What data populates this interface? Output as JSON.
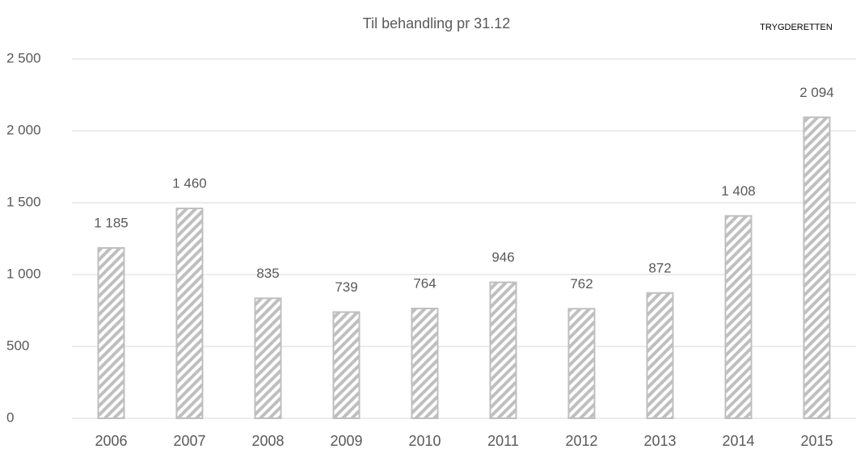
{
  "chart_data": {
    "type": "bar",
    "title": "Til behandling pr 31.12",
    "annotation": "TRYGDERETTEN",
    "categories": [
      "2006",
      "2007",
      "2008",
      "2009",
      "2010",
      "2011",
      "2012",
      "2013",
      "2014",
      "2015"
    ],
    "values": [
      1185,
      1460,
      835,
      739,
      764,
      946,
      762,
      872,
      1408,
      2094
    ],
    "value_labels": [
      "1 185",
      "1 460",
      "835",
      "739",
      "764",
      "946",
      "762",
      "872",
      "1 408",
      "2 094"
    ],
    "color": "#bfbfbf",
    "ylim": [
      0,
      2500
    ],
    "yticks": [
      0,
      500,
      {
        "value": 1000,
        "label": "1 000"
      },
      {
        "value": 1500,
        "label": "1 500"
      },
      {
        "value": 2000,
        "label": "2 000"
      },
      {
        "value": 2500,
        "label": "2 500"
      }
    ],
    "grid": true
  }
}
